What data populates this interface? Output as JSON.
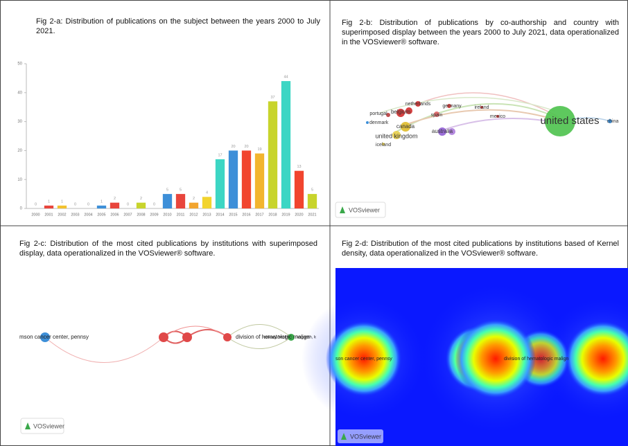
{
  "chart_data": {
    "type": "bar",
    "title": "Fig 2-a: Distribution of publications on the subject between the years 2000 to July 2021.",
    "categories": [
      "2000",
      "2001",
      "2002",
      "2003",
      "2004",
      "2005",
      "2006",
      "2007",
      "2008",
      "2009",
      "2010",
      "2011",
      "2012",
      "2013",
      "2014",
      "2015",
      "2016",
      "2017",
      "2018",
      "2019",
      "2020",
      "2021"
    ],
    "values": [
      0,
      1,
      1,
      0,
      0,
      1,
      2,
      0,
      2,
      0,
      5,
      5,
      2,
      4,
      17,
      20,
      20,
      19,
      37,
      44,
      13,
      5
    ],
    "colors": [
      "#3d8fd8",
      "#e8453c",
      "#f2c12e",
      "#3d8fd8",
      "#e8453c",
      "#3d8fd8",
      "#e8453c",
      "#f2c12e",
      "#c8d42c",
      "#3d8fd8",
      "#3d8fd8",
      "#e8453c",
      "#f2a52e",
      "#f2d42e",
      "#3cd6c4",
      "#3d8fd8",
      "#f1452e",
      "#f2b52e",
      "#c8d42c",
      "#3cd6c4",
      "#f1452e",
      "#c8d42c"
    ],
    "ylim": [
      0,
      50
    ],
    "yticks": [
      0,
      10,
      20,
      30,
      40,
      50
    ]
  },
  "panels": [
    {
      "caption": "Fig 2-b: Distribution of publications by co-authorship and country with superimposed display between the years 2000 to July 2021, data operationalized in the VOSviewer® software.",
      "labels": [
        "united states",
        "united kingdom",
        "canada",
        "australia",
        "netherlands",
        "belgium",
        "germany",
        "spain",
        "portugal",
        "denmark",
        "ireland",
        "mexico",
        "iceland",
        "china"
      ],
      "logo": "VOSviewer"
    },
    {
      "caption": "Fig 2-c: Distribution of the most cited publications by institutions with superimposed display, data operationalized in the VOSviewer® software.",
      "labels": [
        "mson cancer center, pennsy",
        "division of hematologic malign",
        "calvary health",
        "kogarah, k"
      ],
      "logo": "VOSviewer"
    },
    {
      "caption": "Fig 2-d: Distribution of the most cited publications by institutions based of Kernel density, data operationalized in the VOSviewer® software.",
      "labels": [
        "son cancer center, pennsy",
        "division of hematologic malign"
      ],
      "logo": "VOSviewer"
    }
  ]
}
